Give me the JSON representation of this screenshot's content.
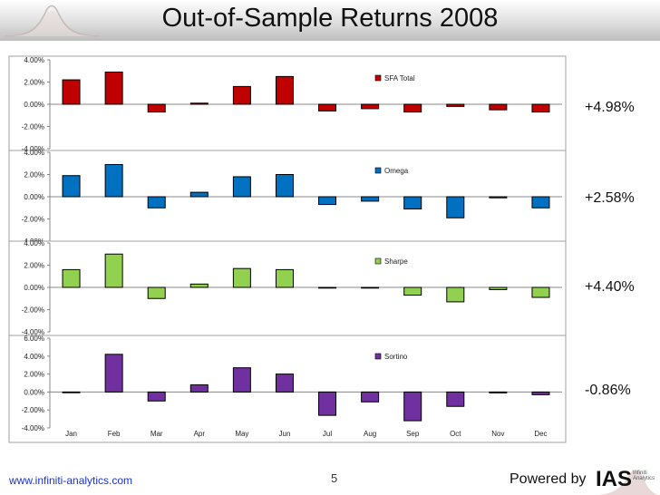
{
  "title": "Out-of-Sample Returns 2008",
  "footer": {
    "url": "www.infiniti-analytics.com",
    "page_number": "5",
    "powered_by": "Powered by",
    "logo_text": "IAS",
    "logo_subtext": "Infiniti Analytics"
  },
  "chart_data": [
    {
      "type": "bar",
      "categories": [
        "Jan",
        "Feb",
        "Mar",
        "Apr",
        "May",
        "Jun",
        "Jul",
        "Aug",
        "Sep",
        "Oct",
        "Nov",
        "Dec"
      ],
      "series": [
        {
          "name": "SFA Total",
          "values": [
            2.2,
            2.9,
            -0.7,
            0.1,
            1.6,
            2.5,
            -0.6,
            -0.4,
            -0.7,
            -0.2,
            -0.5,
            -0.7
          ],
          "color": "#c00000"
        }
      ],
      "yticks": [
        "4.00%",
        "2.00%",
        "0.00%",
        "-2.00%",
        "-4.00%"
      ],
      "ylim": [
        -4,
        4
      ],
      "total": "+4.98%",
      "legend_position": "top-right"
    },
    {
      "type": "bar",
      "categories": [
        "Jan",
        "Feb",
        "Mar",
        "Apr",
        "May",
        "Jun",
        "Jul",
        "Aug",
        "Sep",
        "Oct",
        "Nov",
        "Dec"
      ],
      "series": [
        {
          "name": "Omega",
          "values": [
            1.9,
            2.9,
            -1.0,
            0.4,
            1.8,
            2.0,
            -0.7,
            -0.4,
            -1.1,
            -1.9,
            -0.1,
            -1.0
          ],
          "color": "#0070c0"
        }
      ],
      "yticks": [
        "4.00%",
        "2.00%",
        "0.00%",
        "-2.00%",
        "-4.00%"
      ],
      "ylim": [
        -4,
        4
      ],
      "total": "+2.58%",
      "legend_position": "top-right"
    },
    {
      "type": "bar",
      "categories": [
        "Jan",
        "Feb",
        "Mar",
        "Apr",
        "May",
        "Jun",
        "Jul",
        "Aug",
        "Sep",
        "Oct",
        "Nov",
        "Dec"
      ],
      "series": [
        {
          "name": "Sharpe",
          "values": [
            1.6,
            3.0,
            -1.0,
            0.3,
            1.7,
            1.6,
            -0.05,
            -0.05,
            -0.7,
            -1.3,
            -0.2,
            -0.9
          ],
          "color": "#92d050"
        }
      ],
      "yticks": [
        "4.00%",
        "2.00%",
        "0.00%",
        "-2.00%",
        "-4.00%"
      ],
      "ylim": [
        -4,
        4
      ],
      "total": "+4.40%",
      "legend_position": "top-right"
    },
    {
      "type": "bar",
      "categories": [
        "Jan",
        "Feb",
        "Mar",
        "Apr",
        "May",
        "Jun",
        "Jul",
        "Aug",
        "Sep",
        "Oct",
        "Nov",
        "Dec"
      ],
      "series": [
        {
          "name": "Sortino",
          "values": [
            0.0,
            4.2,
            -1.0,
            0.8,
            2.7,
            2.0,
            -2.6,
            -1.1,
            -3.2,
            -1.6,
            -0.1,
            -0.3
          ],
          "color": "#7030a0"
        }
      ],
      "yticks": [
        "6.00%",
        "4.00%",
        "2.00%",
        "0.00%",
        "-2.00%",
        "-4.00%"
      ],
      "ylim": [
        -4,
        6
      ],
      "total": "-0.86%",
      "legend_position": "top-right"
    }
  ]
}
